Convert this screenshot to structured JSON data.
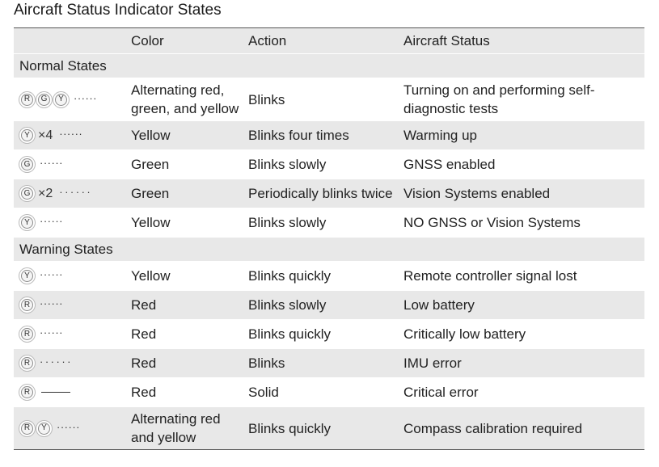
{
  "title": "Aircraft Status Indicator States",
  "headers": {
    "indicator": "",
    "color": "Color",
    "action": "Action",
    "status": "Aircraft Status"
  },
  "sections": [
    {
      "label": "Normal States",
      "rows": [
        {
          "leds": [
            "R",
            "G",
            "Y"
          ],
          "mult": "",
          "pattern": "······",
          "color": "Alternating red, green, and yellow",
          "action": "Blinks",
          "status": "Turning on and performing self-diagnostic tests"
        },
        {
          "leds": [
            "Y"
          ],
          "mult": "×4",
          "pattern": "······",
          "color": "Yellow",
          "action": "Blinks four times",
          "status": "Warming up"
        },
        {
          "leds": [
            "G"
          ],
          "mult": "",
          "pattern": "······",
          "color": "Green",
          "action": "Blinks slowly",
          "status": "GNSS enabled"
        },
        {
          "leds": [
            "G"
          ],
          "mult": "×2",
          "pattern": "······",
          "color": "Green",
          "action": "Periodically blinks twice",
          "status": "Vision Systems enabled"
        },
        {
          "leds": [
            "Y"
          ],
          "mult": "",
          "pattern": "······",
          "color": "Yellow",
          "action": "Blinks slowly",
          "status": "NO GNSS or Vision Systems"
        }
      ]
    },
    {
      "label": "Warning States",
      "rows": [
        {
          "leds": [
            "Y"
          ],
          "mult": "",
          "pattern": "······",
          "color": "Yellow",
          "action": "Blinks quickly",
          "status": "Remote controller signal lost"
        },
        {
          "leds": [
            "R"
          ],
          "mult": "",
          "pattern": "······",
          "color": "Red",
          "action": "Blinks slowly",
          "status": "Low battery"
        },
        {
          "leds": [
            "R"
          ],
          "mult": "",
          "pattern": "······",
          "color": "Red",
          "action": "Blinks quickly",
          "status": "Critically low battery"
        },
        {
          "leds": [
            "R"
          ],
          "mult": "",
          "pattern": "······",
          "color": "Red",
          "action": "Blinks",
          "status": "IMU error"
        },
        {
          "leds": [
            "R"
          ],
          "mult": "",
          "pattern": "——",
          "color": "Red",
          "action": "Solid",
          "status": "Critical error"
        },
        {
          "leds": [
            "R",
            "Y"
          ],
          "mult": "",
          "pattern": "······",
          "color": "Alternating red and yellow",
          "action": "Blinks quickly",
          "status": "Compass calibration required"
        }
      ]
    }
  ],
  "colors": {
    "row_gray": "#e8e8e8",
    "rule": "#555555",
    "text": "#222222"
  }
}
